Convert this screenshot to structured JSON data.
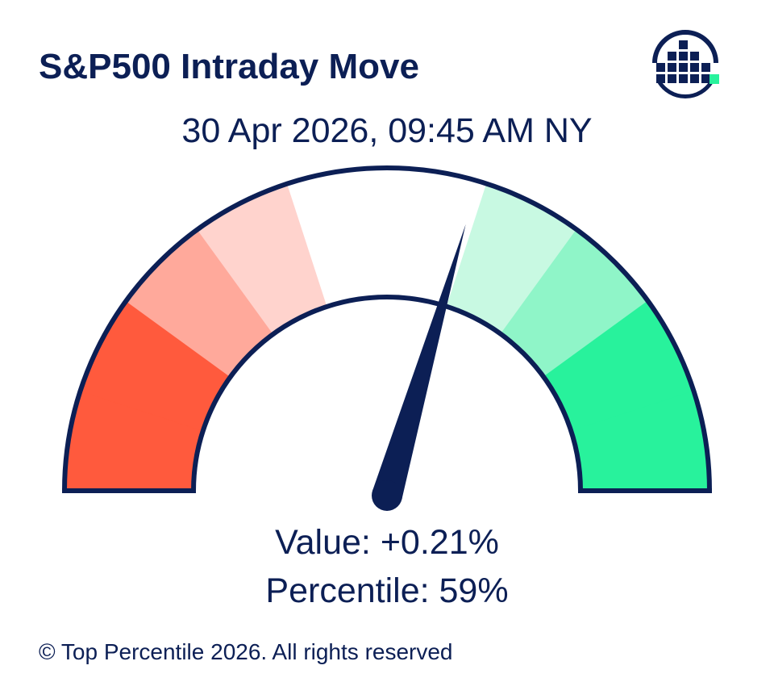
{
  "header": {
    "title": "S&P500 Intraday Move",
    "subtitle": "30 Apr 2026, 09:45 AM NY",
    "logo_icon": "top-percentile-logo-icon"
  },
  "chart_data": {
    "type": "gauge",
    "title": "S&P500 Intraday Move",
    "subtitle": "30 Apr 2026, 09:45 AM NY",
    "range": [
      0,
      100
    ],
    "bands": [
      {
        "from": 0,
        "to": 10,
        "color": "#ff5a3d"
      },
      {
        "from": 10,
        "to": 20,
        "color": "#ff5a3d"
      },
      {
        "from": 20,
        "to": 30,
        "color": "#ffa99b"
      },
      {
        "from": 30,
        "to": 40,
        "color": "#ffd3cd"
      },
      {
        "from": 40,
        "to": 60,
        "color": "#ffffff"
      },
      {
        "from": 60,
        "to": 70,
        "color": "#c8f9e2"
      },
      {
        "from": 70,
        "to": 80,
        "color": "#8ff5c8"
      },
      {
        "from": 80,
        "to": 90,
        "color": "#28f29c"
      },
      {
        "from": 90,
        "to": 100,
        "color": "#28f29c"
      }
    ],
    "needle_percentile": 59,
    "value_text": "+0.21%",
    "percentile_text": "59%"
  },
  "readout": {
    "value_label": "Value: +0.21%",
    "percentile_label": "Percentile: 59%"
  },
  "footer": {
    "copyright": "© Top Percentile 2026. All rights reserved"
  },
  "colors": {
    "navy": "#0c1f55",
    "red": "#ff5a3d",
    "green": "#28f29c"
  }
}
